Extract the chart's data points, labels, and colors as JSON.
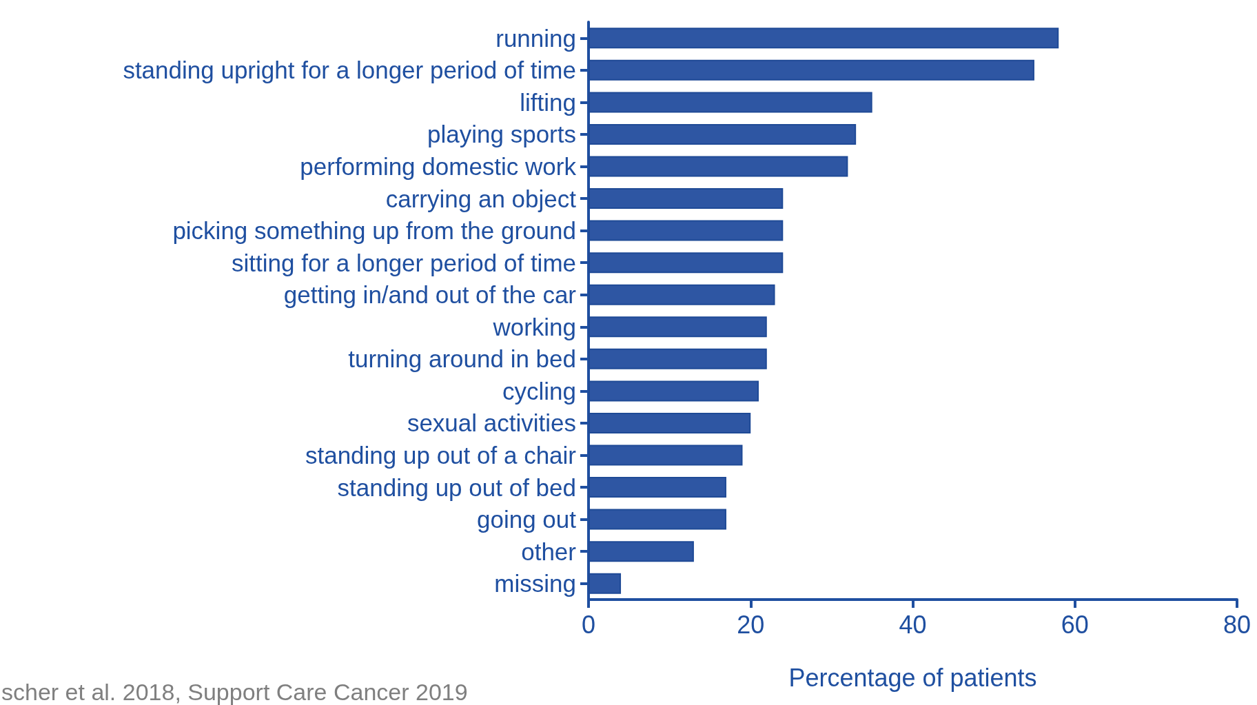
{
  "chart_data": {
    "type": "bar",
    "orientation": "horizontal",
    "xlabel": "Percentage of patients",
    "categories": [
      "running",
      "standing upright for a longer period of time",
      "lifting",
      "playing sports",
      "performing domestic work",
      "carrying an object",
      "picking something up from the ground",
      "sitting for a longer period of time",
      "getting in/and out of the car",
      "working",
      "turning around in bed",
      "cycling",
      "sexual activities",
      "standing up out of a chair",
      "standing up out of bed",
      "going out",
      "other",
      "missing"
    ],
    "values": [
      58,
      55,
      35,
      33,
      32,
      24,
      24,
      24,
      23,
      22,
      22,
      21,
      20,
      19,
      17,
      17,
      13,
      4
    ],
    "color": "#2e56a3",
    "xlim": [
      0,
      80
    ],
    "xticks": [
      0,
      20,
      40,
      60,
      80
    ],
    "grid": false,
    "annotations": [
      "scher et al. 2018, Support Care Cancer 2019"
    ]
  }
}
